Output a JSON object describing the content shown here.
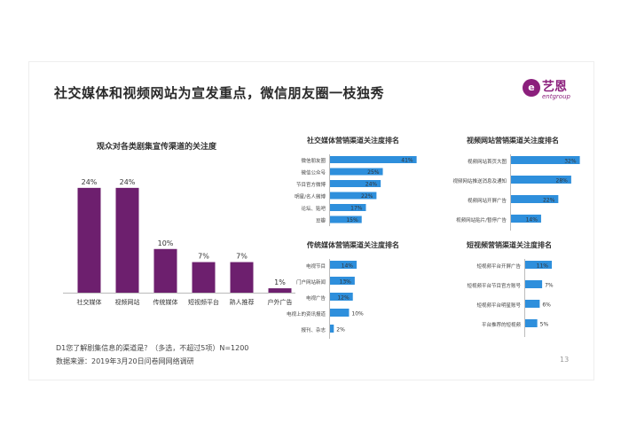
{
  "title": "社交媒体和视频网站为宣发重点，微信朋友圈一枝独秀",
  "logo": {
    "cn": "艺恩",
    "en": "entgroup",
    "mark": "e"
  },
  "colors": {
    "purple": "#6d1f6e",
    "blue": "#2e8fdc",
    "text": "#333333"
  },
  "chart_data": [
    {
      "type": "bar",
      "title": "观众对各类剧集宣传渠道的关注度",
      "categories": [
        "社交媒体",
        "视频网站",
        "传统媒体",
        "短视频平台",
        "熟人推荐",
        "户外广告"
      ],
      "values": [
        24,
        24,
        10,
        7,
        7,
        1
      ],
      "value_labels": [
        "24%",
        "24%",
        "10%",
        "7%",
        "7%",
        "1%"
      ],
      "ylim": [
        0,
        26
      ]
    },
    {
      "type": "bar",
      "orientation": "horizontal",
      "title": "社交媒体营销渠道关注度排名",
      "categories": [
        "微信朋友圈",
        "微信公众号",
        "节目官方微博",
        "明星/名人微博",
        "论坛、贴吧",
        "豆瓣"
      ],
      "values": [
        41,
        25,
        24,
        22,
        17,
        15
      ],
      "value_labels": [
        "41%",
        "25%",
        "24%",
        "22%",
        "17%",
        "15%"
      ],
      "xlim": [
        0,
        42
      ]
    },
    {
      "type": "bar",
      "orientation": "horizontal",
      "title": "视频网站营销渠道关注度排名",
      "categories": [
        "视频网站首页大图",
        "视频网站推送消息及通知",
        "视频网站开屏广告",
        "视频网站贴片/暂停广告"
      ],
      "values": [
        32,
        28,
        22,
        14
      ],
      "value_labels": [
        "32%",
        "28%",
        "22%",
        "14%"
      ],
      "xlim": [
        0,
        33
      ]
    },
    {
      "type": "bar",
      "orientation": "horizontal",
      "title": "传统媒体营销渠道关注度排名",
      "categories": [
        "电视节目",
        "门户网站新闻",
        "电视广告",
        "电视上的资讯报道",
        "报刊、杂志"
      ],
      "values": [
        14,
        13,
        12,
        10,
        2
      ],
      "value_labels": [
        "14%",
        "13%",
        "12%",
        "10%",
        "2%"
      ],
      "xlim": [
        0,
        14
      ]
    },
    {
      "type": "bar",
      "orientation": "horizontal",
      "title": "短视频营销渠道关注度排名",
      "categories": [
        "短视频平台开屏广告",
        "短视频平台节目官方账号",
        "短视频平台明星账号",
        "平台推荐的短视频"
      ],
      "values": [
        11,
        7,
        6,
        5
      ],
      "value_labels": [
        "11%",
        "7%",
        "6%",
        "5%"
      ],
      "xlim": [
        0,
        11
      ]
    }
  ],
  "footnote": {
    "question": "D1您了解剧集信息的渠道是？（多选，不超过5项）N=1200",
    "source": "数据来源：2019年3月20日问卷网网络调研"
  },
  "page_number": "13"
}
